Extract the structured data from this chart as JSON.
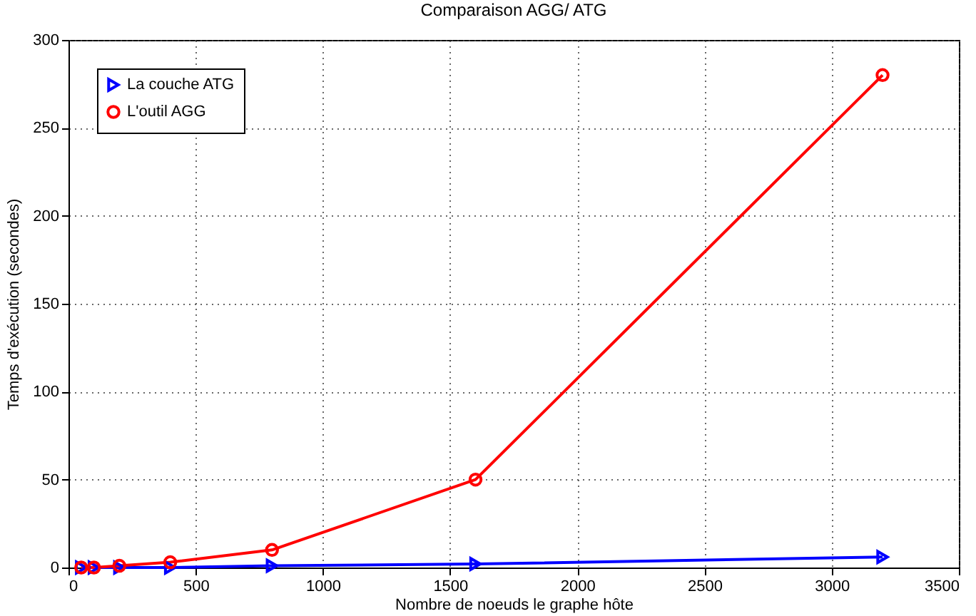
{
  "chart_data": {
    "type": "line",
    "title": "Comparaison AGG/ ATG",
    "xlabel": "Nombre de noeuds le graphe hôte",
    "ylabel": "Temps d'exécution (secondes)",
    "x": [
      50,
      100,
      200,
      400,
      800,
      1600,
      3200
    ],
    "series": [
      {
        "name": "La couche ATG",
        "color": "#0000ff",
        "marker": "triangle",
        "values": [
          0,
          0,
          0,
          0,
          1,
          2,
          6
        ]
      },
      {
        "name": "L'outil AGG",
        "color": "#ff0000",
        "marker": "circle",
        "values": [
          0,
          0,
          1,
          3,
          10,
          50,
          280
        ]
      }
    ],
    "xlim": [
      0,
      3500
    ],
    "xticks": [
      0,
      500,
      1000,
      1500,
      2000,
      2500,
      3000,
      3500
    ],
    "ylim": [
      0,
      300
    ],
    "yticks": [
      0,
      50,
      100,
      150,
      200,
      250,
      300
    ],
    "grid": true,
    "legend": "top left",
    "line_style": "solid"
  }
}
